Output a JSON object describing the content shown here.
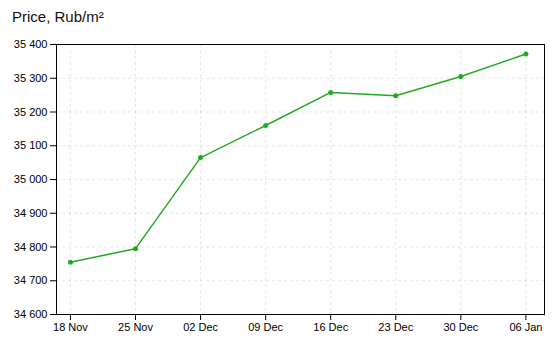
{
  "chart_data": {
    "type": "line",
    "title": "Price, Rub/m²",
    "x": [
      0,
      7,
      14,
      21,
      28,
      35,
      42,
      49
    ],
    "values": [
      34755,
      34795,
      35065,
      35160,
      35258,
      35248,
      35305,
      35372
    ],
    "color": "#22aa22",
    "marker": "circle",
    "xlim": [
      -1.5,
      51
    ],
    "xticks": [
      {
        "value": 0,
        "label": "18 Nov"
      },
      {
        "value": 7,
        "label": "25 Nov"
      },
      {
        "value": 14,
        "label": "02 Dec"
      },
      {
        "value": 21,
        "label": "09 Dec"
      },
      {
        "value": 28,
        "label": "16 Dec"
      },
      {
        "value": 35,
        "label": "23 Dec"
      },
      {
        "value": 42,
        "label": "30 Dec"
      },
      {
        "value": 49,
        "label": "06 Jan"
      }
    ],
    "ylim": [
      34600,
      35400
    ],
    "yticks": [
      {
        "value": 34600,
        "label": "34 600"
      },
      {
        "value": 34700,
        "label": "34 700"
      },
      {
        "value": 34800,
        "label": "34 800"
      },
      {
        "value": 34900,
        "label": "34 900"
      },
      {
        "value": 35000,
        "label": "35 000"
      },
      {
        "value": 35100,
        "label": "35 100"
      },
      {
        "value": 35200,
        "label": "35 200"
      },
      {
        "value": 35300,
        "label": "35 300"
      },
      {
        "value": 35400,
        "label": "35 400"
      }
    ],
    "grid": true
  }
}
